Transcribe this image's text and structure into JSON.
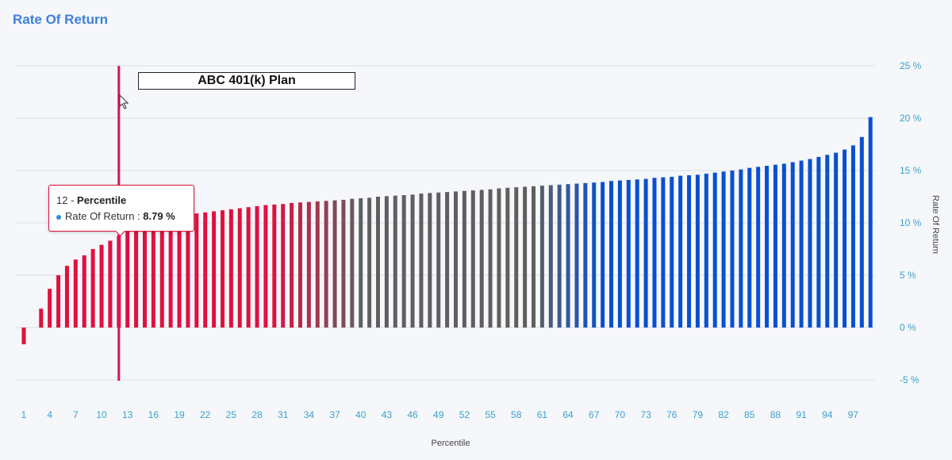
{
  "title": "Rate Of Return",
  "chart_data": {
    "type": "bar",
    "title": "Rate Of Return",
    "xlabel": "Percentile",
    "ylabel": "Rate Of Return",
    "ylim": [
      -5,
      25
    ],
    "yticks": [
      25,
      20,
      15,
      10,
      5,
      0,
      -5
    ],
    "ytick_labels": [
      "25 %",
      "20 %",
      "15 %",
      "10 %",
      "5 %",
      "0 %",
      "-5 %"
    ],
    "xtick_labels": [
      "1",
      "4",
      "7",
      "10",
      "13",
      "16",
      "19",
      "22",
      "25",
      "28",
      "31",
      "34",
      "37",
      "40",
      "43",
      "46",
      "49",
      "52",
      "55",
      "58",
      "61",
      "64",
      "67",
      "70",
      "73",
      "76",
      "79",
      "82",
      "85",
      "88",
      "91",
      "94",
      "97"
    ],
    "grid": true,
    "x": [
      1,
      2,
      3,
      4,
      5,
      6,
      7,
      8,
      9,
      10,
      11,
      12,
      13,
      14,
      15,
      16,
      17,
      18,
      19,
      20,
      21,
      22,
      23,
      24,
      25,
      26,
      27,
      28,
      29,
      30,
      31,
      32,
      33,
      34,
      35,
      36,
      37,
      38,
      39,
      40,
      41,
      42,
      43,
      44,
      45,
      46,
      47,
      48,
      49,
      50,
      51,
      52,
      53,
      54,
      55,
      56,
      57,
      58,
      59,
      60,
      61,
      62,
      63,
      64,
      65,
      66,
      67,
      68,
      69,
      70,
      71,
      72,
      73,
      74,
      75,
      76,
      77,
      78,
      79,
      80,
      81,
      82,
      83,
      84,
      85,
      86,
      87,
      88,
      89,
      90,
      91,
      92,
      93,
      94,
      95,
      96,
      97,
      98,
      99
    ],
    "values": [
      -1.6,
      0,
      1.8,
      3.7,
      5.0,
      5.9,
      6.5,
      6.9,
      7.5,
      7.9,
      8.3,
      8.79,
      9.2,
      9.5,
      9.8,
      10.0,
      10.2,
      10.4,
      10.6,
      10.7,
      10.9,
      11.0,
      11.1,
      11.2,
      11.3,
      11.4,
      11.5,
      11.6,
      11.7,
      11.75,
      11.8,
      11.9,
      11.95,
      12.0,
      12.05,
      12.1,
      12.15,
      12.2,
      12.3,
      12.35,
      12.4,
      12.5,
      12.55,
      12.6,
      12.65,
      12.7,
      12.8,
      12.85,
      12.9,
      12.95,
      13.0,
      13.05,
      13.1,
      13.15,
      13.2,
      13.3,
      13.35,
      13.4,
      13.45,
      13.5,
      13.55,
      13.6,
      13.65,
      13.7,
      13.75,
      13.8,
      13.85,
      13.9,
      14.0,
      14.05,
      14.1,
      14.15,
      14.2,
      14.3,
      14.35,
      14.4,
      14.5,
      14.55,
      14.6,
      14.7,
      14.8,
      14.9,
      15.0,
      15.1,
      15.25,
      15.35,
      15.45,
      15.55,
      15.65,
      15.8,
      15.95,
      16.1,
      16.3,
      16.5,
      16.7,
      17.0,
      17.4,
      18.2,
      20.1
    ],
    "colors": {
      "low": "#e0103f",
      "mid": "#5f5f5f",
      "high": "#0a4fd0",
      "marker": "#e0105a"
    },
    "color_stops": [
      30,
      40,
      60,
      68
    ],
    "marker_percentile": 12,
    "annotation": "ABC 401(k) Plan",
    "tooltip": {
      "percentile": "12",
      "sep": " - ",
      "label": "Percentile",
      "series": "Rate Of Return : ",
      "value": "8.79 %"
    }
  }
}
